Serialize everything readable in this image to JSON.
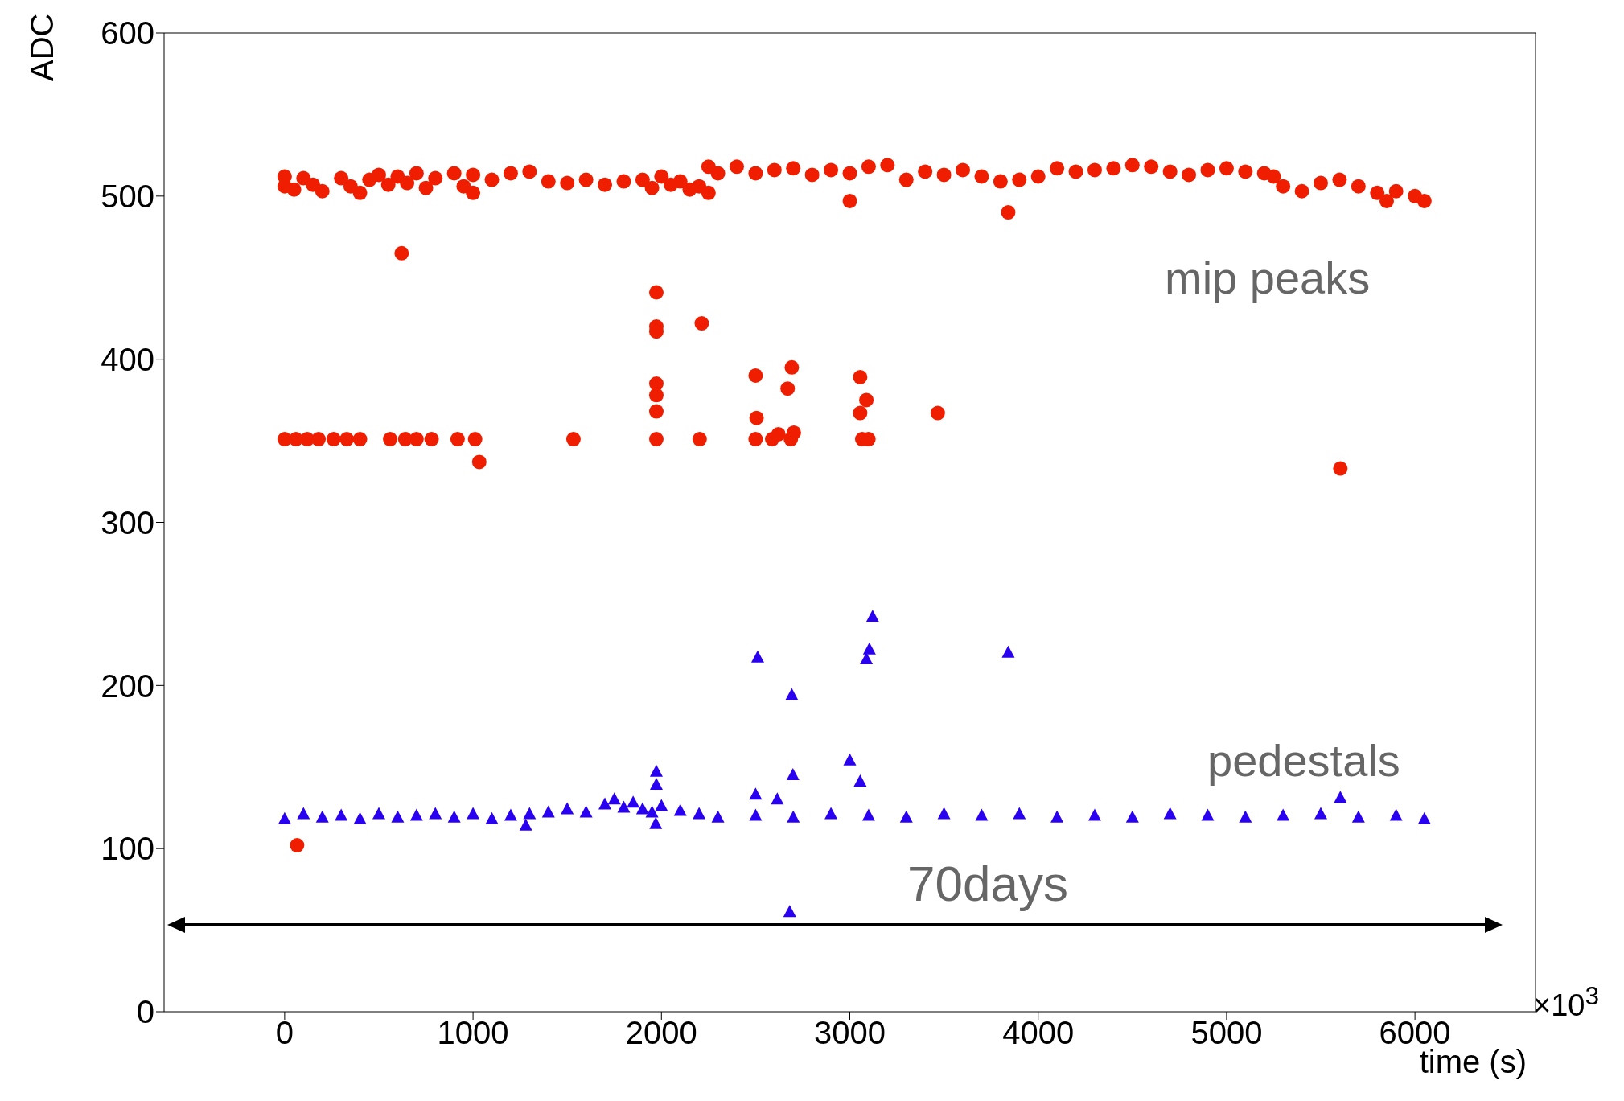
{
  "chart_data": {
    "type": "scatter",
    "xlabel": "time (s)",
    "ylabel": "ADC",
    "xlim": [
      -640,
      6640
    ],
    "ylim": [
      0,
      600
    ],
    "xticks": [
      0,
      1000,
      2000,
      3000,
      4000,
      5000,
      6000
    ],
    "yticks": [
      0,
      100,
      200,
      300,
      400,
      500,
      600
    ],
    "annotations": [
      "70days",
      "×10$^{3}$"
    ],
    "series": [
      {
        "name": "mip peaks",
        "color": "#f01e00",
        "marker": "circle",
        "x": [
          0,
          0,
          50,
          100,
          150,
          200,
          300,
          350,
          400,
          450,
          500,
          550,
          600,
          650,
          700,
          750,
          800,
          900,
          950,
          1000,
          1000,
          1100,
          1200,
          1300,
          1400,
          1500,
          1600,
          1700,
          1800,
          1900,
          1950,
          2000,
          2050,
          2100,
          2150,
          2200,
          2250,
          2250,
          2300,
          2400,
          2500,
          2600,
          2700,
          2800,
          2900,
          3000,
          3100,
          3200,
          3300,
          3400,
          3500,
          3600,
          3700,
          3800,
          3900,
          4000,
          4100,
          4200,
          4300,
          4400,
          4500,
          4600,
          4700,
          4800,
          4900,
          5000,
          5100,
          5200,
          5250,
          5300,
          5400,
          5500,
          5600,
          5700,
          5800,
          5850,
          5900,
          6000,
          6050,
          621,
          66,
          0,
          60,
          120,
          180,
          260,
          330,
          400,
          560,
          640,
          700,
          780,
          918,
          1011,
          1033,
          1533,
          1973,
          1973,
          1973,
          1973,
          1973,
          1973,
          1973,
          2214,
          2203,
          2500,
          2505,
          2500,
          2588,
          2621,
          2670,
          2692,
          2703,
          2687,
          3000,
          3055,
          3055,
          3088,
          3066,
          3099,
          3467,
          3841,
          5604
        ],
        "values": [
          512,
          506,
          504,
          511,
          507,
          503,
          511,
          506,
          502,
          510,
          513,
          507,
          512,
          508,
          514,
          505,
          511,
          514,
          506,
          513,
          502,
          510,
          514,
          515,
          509,
          508,
          510,
          507,
          509,
          510,
          505,
          512,
          507,
          509,
          504,
          506,
          502,
          518,
          514,
          518,
          514,
          516,
          517,
          513,
          516,
          514,
          518,
          519,
          510,
          515,
          513,
          516,
          512,
          509,
          510,
          512,
          517,
          515,
          516,
          517,
          519,
          518,
          515,
          513,
          516,
          517,
          515,
          514,
          512,
          506,
          503,
          508,
          510,
          506,
          502,
          497,
          503,
          500,
          497,
          465,
          102,
          351,
          351,
          351,
          351,
          351,
          351,
          351,
          351,
          351,
          351,
          351,
          351,
          351,
          337,
          351,
          441,
          420,
          417,
          385,
          378,
          368,
          351,
          422,
          351,
          390,
          364,
          351,
          351,
          354,
          382,
          395,
          355,
          351,
          497,
          389,
          367,
          375,
          351,
          351,
          367,
          490,
          333
        ]
      },
      {
        "name": "pedestals",
        "color": "#2a00f0",
        "marker": "triangle",
        "x": [
          0,
          100,
          200,
          300,
          400,
          500,
          600,
          700,
          800,
          900,
          1000,
          1100,
          1200,
          1280,
          1300,
          1400,
          1500,
          1600,
          1700,
          1750,
          1800,
          1850,
          1900,
          1950,
          1970,
          2000,
          2100,
          2200,
          2300,
          2500,
          2700,
          2900,
          3100,
          3300,
          3500,
          3700,
          3900,
          4100,
          4300,
          4500,
          4700,
          4900,
          5100,
          5300,
          5500,
          5700,
          5900,
          6050,
          2511,
          2692,
          3121,
          3104,
          3088,
          3841,
          1973,
          1973,
          2500,
          2615,
          2698,
          3000,
          3055,
          5604,
          2681
        ],
        "values": [
          118,
          121,
          119,
          120,
          118,
          121,
          119,
          120,
          121,
          119,
          121,
          118,
          120,
          114,
          121,
          122,
          124,
          122,
          127,
          130,
          125,
          128,
          124,
          122,
          115,
          126,
          123,
          121,
          119,
          120,
          119,
          121,
          120,
          119,
          121,
          120,
          121,
          119,
          120,
          119,
          121,
          120,
          119,
          120,
          121,
          119,
          120,
          118,
          217,
          194,
          242,
          222,
          216,
          220,
          147,
          139,
          133,
          130,
          145,
          154,
          141,
          131,
          61
        ]
      }
    ]
  }
}
